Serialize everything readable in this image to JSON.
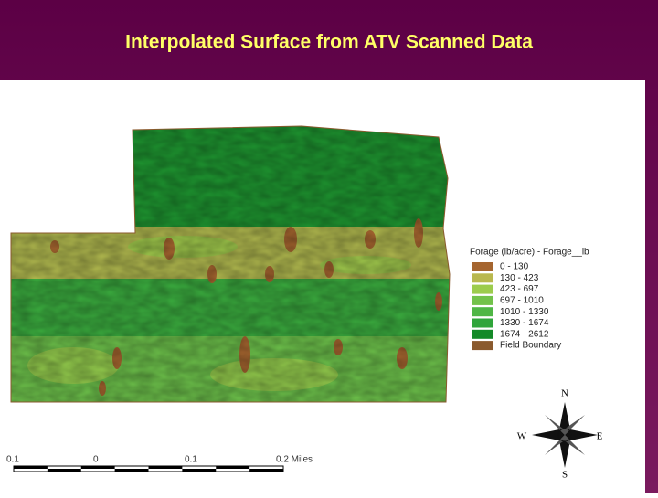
{
  "header": {
    "title": "Interpolated Surface from ATV Scanned Data"
  },
  "legend": {
    "title": "Forage (lb/acre) - Forage__lb",
    "items": [
      {
        "label": "0 - 130",
        "color": "#a5652f"
      },
      {
        "label": "130 - 423",
        "color": "#b9b84e"
      },
      {
        "label": "423 - 697",
        "color": "#9ccc4c"
      },
      {
        "label": "697 - 1010",
        "color": "#72c24a"
      },
      {
        "label": "1010 - 1330",
        "color": "#4fb645"
      },
      {
        "label": "1330 - 1674",
        "color": "#2fa53a"
      },
      {
        "label": "1674 - 2612",
        "color": "#148a28"
      },
      {
        "label": "Field Boundary",
        "color": "#8a5a2e"
      }
    ]
  },
  "scale_bar": {
    "labels": [
      "0.1",
      "0",
      "0.1",
      "0.2 Miles"
    ]
  },
  "compass": {
    "north": "N",
    "south": "S",
    "west": "W",
    "east": "E"
  }
}
